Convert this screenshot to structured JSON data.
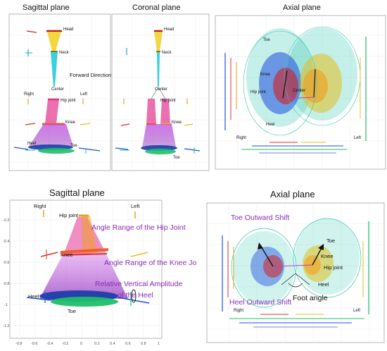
{
  "panels": {
    "sagittal_small": {
      "title": "Sagittal plane",
      "labels": {
        "head": "Head",
        "neck": "Neck",
        "forward": "Forward Direction",
        "center": "Center",
        "right": "Right",
        "left": "Left",
        "hip": "Hip joint",
        "knee": "Knee",
        "heel": "Heel",
        "toe": "Toe"
      }
    },
    "coronal": {
      "title": "Coronal plane",
      "labels": {
        "head": "Head",
        "neck": "Neck",
        "center": "Center",
        "hip": "Hip joint",
        "knee": "Knee",
        "toe": "Toe"
      }
    },
    "axial_small": {
      "title": "Axial plane",
      "labels": {
        "toe": "Toe",
        "knee": "Knee",
        "hip": "Hip joint",
        "center": "Center",
        "heel": "Heel",
        "right": "Right",
        "left": "Left"
      }
    },
    "sagittal_large": {
      "title": "Sagittal plane",
      "labels": {
        "right": "Right",
        "left": "Left",
        "hip": "Hip joint",
        "knee": "Knee",
        "heel": "Heel",
        "toe": "Toe"
      },
      "annotations": {
        "hip_range": "Angle Range of the Hip Joint",
        "knee_range": "Angle Range of the Knee Joint",
        "heel_amp_1": "Relative Vertical Amplitude",
        "heel_amp_2": "of the Heel"
      },
      "y_ticks": [
        "-0.2",
        "-0.4",
        "-0.6",
        "-0.8",
        "-1",
        "-1.2"
      ],
      "x_ticks": [
        "-0.8",
        "-0.6",
        "-0.4",
        "-0.2",
        "0",
        "0.2",
        "0.4",
        "0.6",
        "0.8",
        "1"
      ]
    },
    "axial_large": {
      "title": "Axial plane",
      "labels": {
        "toe_l": "Toe",
        "knee_l": "Knee",
        "hip_l": "Hip joint",
        "heel_l": "Heel",
        "right": "Right",
        "left": "Left"
      },
      "annotations": {
        "toe_shift": "Toe Outward Shift",
        "heel_shift": "Heel Outward Shift",
        "foot_angle": "Foot angle"
      }
    }
  },
  "colors": {
    "purple": "#8a2cb8",
    "pink": "#e2338f",
    "yellow": "#f0d020",
    "cyan": "#19c7d6",
    "green": "#1fbf6a",
    "blue": "#1f4fe0",
    "red": "#e03030"
  }
}
